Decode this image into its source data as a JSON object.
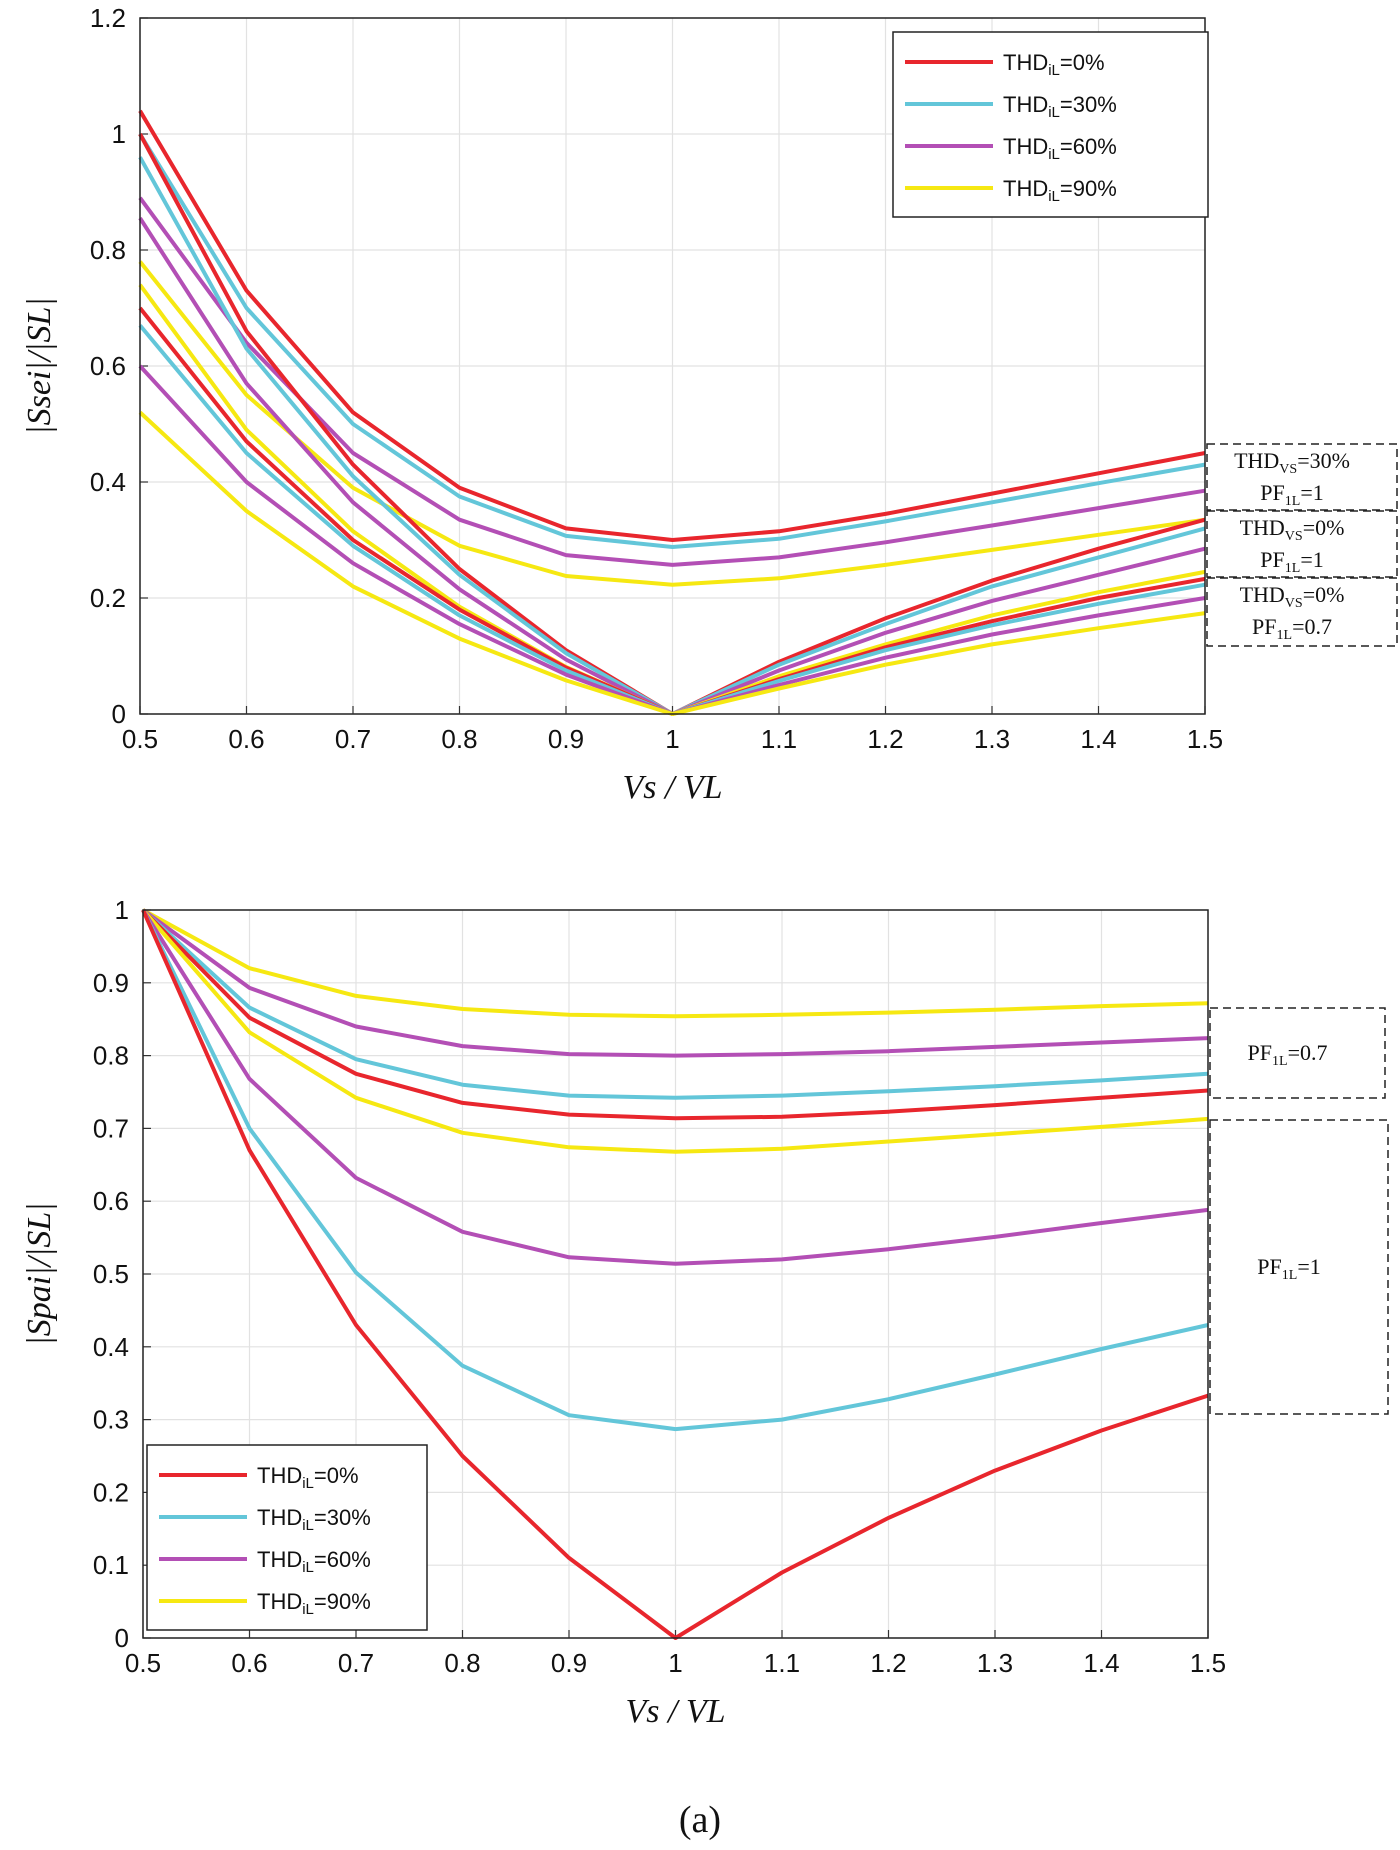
{
  "caption": "(a)",
  "colors": {
    "thd0": "#e8262d",
    "thd30": "#63c6d9",
    "thd60": "#b34fb5",
    "thd90": "#f6e812"
  },
  "legend": [
    {
      "prefix": "THD",
      "sub": "iL",
      "suffix": "=0%",
      "color": "#e8262d"
    },
    {
      "prefix": "THD",
      "sub": "iL",
      "suffix": "=30%",
      "color": "#63c6d9"
    },
    {
      "prefix": "THD",
      "sub": "iL",
      "suffix": "=60%",
      "color": "#b34fb5"
    },
    {
      "prefix": "THD",
      "sub": "iL",
      "suffix": "=90%",
      "color": "#f6e812"
    }
  ],
  "chart_data": [
    {
      "type": "line",
      "xlabel": "Vs / VL",
      "ylabel": "|Ssei|/|SL|",
      "xlim": [
        0.5,
        1.5
      ],
      "ylim": [
        0,
        1.2
      ],
      "xticks": [
        "0.5",
        "0.6",
        "0.7",
        "0.8",
        "0.9",
        "1",
        "1.1",
        "1.2",
        "1.3",
        "1.4",
        "1.5"
      ],
      "yticks": [
        "0",
        "0.2",
        "0.4",
        "0.6",
        "0.8",
        "1",
        "1.2"
      ],
      "x": [
        0.5,
        0.6,
        0.7,
        0.8,
        0.9,
        1.0,
        1.1,
        1.2,
        1.3,
        1.4,
        1.5
      ],
      "grid": true,
      "legend_position": "top-right",
      "annotations": [
        {
          "lines": [
            {
              "a": "THD",
              "b": "VS",
              "c": "=30%"
            },
            {
              "a": "PF",
              "b": "1L",
              "c": "=1"
            }
          ]
        },
        {
          "lines": [
            {
              "a": "THD",
              "b": "VS",
              "c": "=0%"
            },
            {
              "a": "PF",
              "b": "1L",
              "c": "=1"
            }
          ]
        },
        {
          "lines": [
            {
              "a": "THD",
              "b": "VS",
              "c": "=0%"
            },
            {
              "a": "PF",
              "b": "1L",
              "c": "=0.7"
            }
          ]
        }
      ],
      "series": [
        {
          "name": "THDiL=0% (THDVS=30%, PF1L=1)",
          "color": "#e8262d",
          "values": [
            1.04,
            0.73,
            0.52,
            0.39,
            0.32,
            0.3,
            0.315,
            0.345,
            0.38,
            0.415,
            0.45
          ]
        },
        {
          "name": "THDiL=30% (THDVS=30%, PF1L=1)",
          "color": "#63c6d9",
          "values": [
            1.0,
            0.7,
            0.5,
            0.375,
            0.307,
            0.288,
            0.302,
            0.332,
            0.365,
            0.398,
            0.43
          ]
        },
        {
          "name": "THDiL=60% (THDVS=30%, PF1L=1)",
          "color": "#b34fb5",
          "values": [
            0.89,
            0.64,
            0.45,
            0.335,
            0.274,
            0.257,
            0.27,
            0.296,
            0.325,
            0.355,
            0.385
          ]
        },
        {
          "name": "THDiL=90% (THDVS=30%, PF1L=1)",
          "color": "#f6e812",
          "values": [
            0.78,
            0.55,
            0.39,
            0.29,
            0.238,
            0.223,
            0.234,
            0.257,
            0.283,
            0.309,
            0.335
          ]
        },
        {
          "name": "THDiL=0% (THDVS=0%, PF1L=1)",
          "color": "#e8262d",
          "values": [
            1.0,
            0.66,
            0.43,
            0.25,
            0.11,
            0.0,
            0.09,
            0.165,
            0.23,
            0.285,
            0.335
          ]
        },
        {
          "name": "THDiL=30% (THDVS=0%, PF1L=1)",
          "color": "#63c6d9",
          "values": [
            0.96,
            0.63,
            0.41,
            0.24,
            0.105,
            0.0,
            0.085,
            0.155,
            0.22,
            0.27,
            0.32
          ]
        },
        {
          "name": "THDiL=60% (THDVS=0%, PF1L=1)",
          "color": "#b34fb5",
          "values": [
            0.855,
            0.57,
            0.365,
            0.215,
            0.094,
            0.0,
            0.075,
            0.14,
            0.195,
            0.24,
            0.285
          ]
        },
        {
          "name": "THDiL=90% (THDVS=0%, PF1L=1)",
          "color": "#f6e812",
          "values": [
            0.74,
            0.49,
            0.315,
            0.185,
            0.081,
            0.0,
            0.065,
            0.12,
            0.17,
            0.21,
            0.245
          ]
        },
        {
          "name": "THDiL=0% (THDVS=0%, PF1L=0.7)",
          "color": "#e8262d",
          "values": [
            0.7,
            0.47,
            0.3,
            0.18,
            0.08,
            0.0,
            0.06,
            0.115,
            0.16,
            0.2,
            0.233
          ]
        },
        {
          "name": "THDiL=30% (THDVS=0%, PF1L=0.7)",
          "color": "#63c6d9",
          "values": [
            0.67,
            0.45,
            0.29,
            0.17,
            0.075,
            0.0,
            0.057,
            0.11,
            0.153,
            0.19,
            0.223
          ]
        },
        {
          "name": "THDiL=60% (THDVS=0%, PF1L=0.7)",
          "color": "#b34fb5",
          "values": [
            0.6,
            0.4,
            0.26,
            0.155,
            0.068,
            0.0,
            0.05,
            0.097,
            0.137,
            0.17,
            0.2
          ]
        },
        {
          "name": "THDiL=90% (THDVS=0%, PF1L=0.7)",
          "color": "#f6e812",
          "values": [
            0.52,
            0.35,
            0.22,
            0.13,
            0.058,
            0.0,
            0.044,
            0.085,
            0.12,
            0.148,
            0.174
          ]
        }
      ]
    },
    {
      "type": "line",
      "xlabel": "Vs / VL",
      "ylabel": "|Spai|/|SL|",
      "xlim": [
        0.5,
        1.5
      ],
      "ylim": [
        0,
        1.0
      ],
      "xticks": [
        "0.5",
        "0.6",
        "0.7",
        "0.8",
        "0.9",
        "1",
        "1.1",
        "1.2",
        "1.3",
        "1.4",
        "1.5"
      ],
      "yticks": [
        "0",
        "0.1",
        "0.2",
        "0.3",
        "0.4",
        "0.5",
        "0.6",
        "0.7",
        "0.8",
        "0.9",
        "1"
      ],
      "x": [
        0.5,
        0.6,
        0.7,
        0.8,
        0.9,
        1.0,
        1.1,
        1.2,
        1.3,
        1.4,
        1.5
      ],
      "grid": true,
      "legend_position": "bottom-left",
      "annotations": [
        {
          "lines": [
            {
              "a": "PF",
              "b": "1L",
              "c": "=0.7"
            }
          ]
        },
        {
          "lines": [
            {
              "a": "PF",
              "b": "1L",
              "c": "=1"
            }
          ]
        }
      ],
      "series": [
        {
          "name": "THDiL=90% (PF1L=0.7)",
          "color": "#f6e812",
          "values": [
            1.0,
            0.92,
            0.882,
            0.864,
            0.856,
            0.854,
            0.856,
            0.859,
            0.863,
            0.868,
            0.872
          ]
        },
        {
          "name": "THDiL=60% (PF1L=0.7)",
          "color": "#b34fb5",
          "values": [
            1.0,
            0.893,
            0.84,
            0.813,
            0.802,
            0.8,
            0.802,
            0.806,
            0.812,
            0.818,
            0.824
          ]
        },
        {
          "name": "THDiL=30% (PF1L=0.7)",
          "color": "#63c6d9",
          "values": [
            1.0,
            0.866,
            0.795,
            0.76,
            0.745,
            0.742,
            0.745,
            0.751,
            0.758,
            0.766,
            0.775
          ]
        },
        {
          "name": "THDiL=0% (PF1L=0.7)",
          "color": "#e8262d",
          "values": [
            1.0,
            0.852,
            0.775,
            0.735,
            0.719,
            0.714,
            0.716,
            0.723,
            0.732,
            0.742,
            0.752
          ]
        },
        {
          "name": "THDiL=90% (PF1L=1)",
          "color": "#f6e812",
          "values": [
            1.0,
            0.832,
            0.742,
            0.694,
            0.674,
            0.668,
            0.672,
            0.682,
            0.692,
            0.702,
            0.713
          ]
        },
        {
          "name": "THDiL=60% (PF1L=1)",
          "color": "#b34fb5",
          "values": [
            1.0,
            0.768,
            0.632,
            0.558,
            0.523,
            0.514,
            0.52,
            0.534,
            0.551,
            0.57,
            0.588
          ]
        },
        {
          "name": "THDiL=30% (PF1L=1)",
          "color": "#63c6d9",
          "values": [
            1.0,
            0.7,
            0.502,
            0.374,
            0.306,
            0.287,
            0.3,
            0.328,
            0.362,
            0.397,
            0.43
          ]
        },
        {
          "name": "THDiL=0% (PF1L=1)",
          "color": "#e8262d",
          "values": [
            1.0,
            0.67,
            0.43,
            0.25,
            0.11,
            0.0,
            0.09,
            0.165,
            0.23,
            0.285,
            0.333
          ]
        }
      ]
    }
  ]
}
